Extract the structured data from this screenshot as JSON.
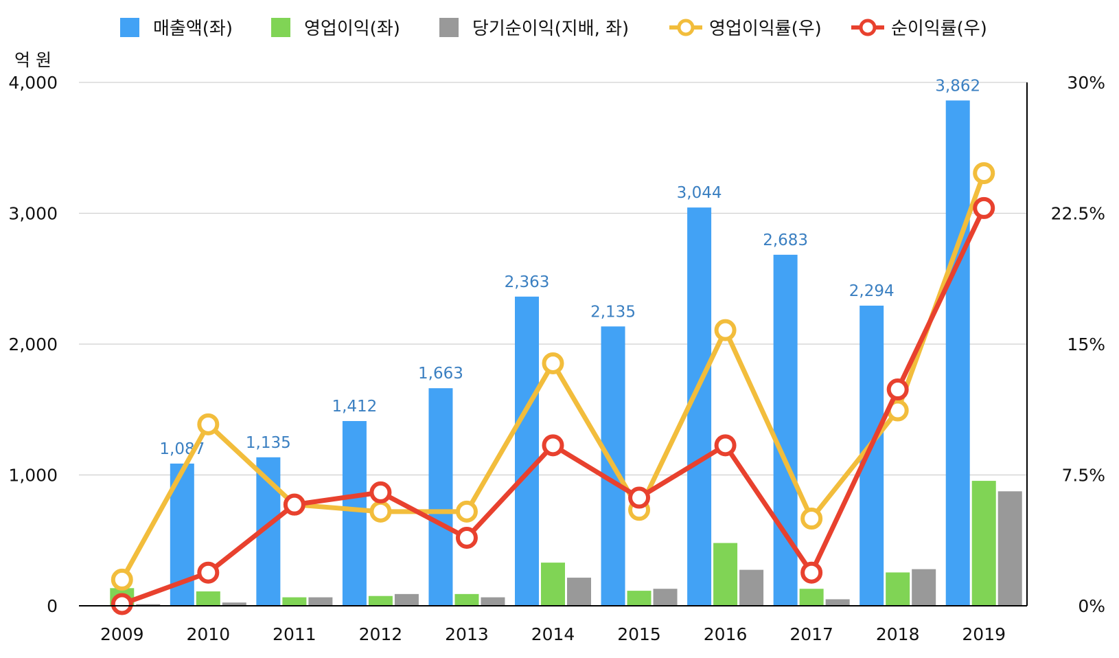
{
  "chart_data": {
    "type": "bar",
    "unit_label": "억 원",
    "categories": [
      "2009",
      "2010",
      "2011",
      "2012",
      "2013",
      "2014",
      "2015",
      "2016",
      "2017",
      "2018",
      "2019"
    ],
    "left_axis": {
      "ylim": [
        0,
        4000
      ],
      "ticks": [
        0,
        1000,
        2000,
        3000,
        4000
      ],
      "tick_labels": [
        "0",
        "1,000",
        "2,000",
        "3,000",
        "4,000"
      ]
    },
    "right_axis": {
      "ylim": [
        0,
        30
      ],
      "ticks": [
        0,
        7.5,
        15,
        22.5,
        30
      ],
      "tick_labels": [
        "0%",
        "7.5%",
        "15%",
        "22.5%",
        "30%"
      ]
    },
    "series": [
      {
        "name": "매출액(좌)",
        "kind": "bar",
        "axis": "left",
        "color": "#42a2f5",
        "values": [
          0,
          1087,
          1135,
          1412,
          1663,
          2363,
          2135,
          3044,
          2683,
          2294,
          3862
        ],
        "labels": [
          "",
          "1,087",
          "1,135",
          "1,412",
          "1,663",
          "2,363",
          "2,135",
          "3,044",
          "2,683",
          "2,294",
          "3,862"
        ]
      },
      {
        "name": "영업이익(좌)",
        "kind": "bar",
        "axis": "left",
        "color": "#80d455",
        "values": [
          135,
          110,
          65,
          75,
          90,
          330,
          115,
          480,
          130,
          255,
          955
        ]
      },
      {
        "name": "당기순이익(지배, 좌)",
        "kind": "bar",
        "axis": "left",
        "color": "#999999",
        "values": [
          12,
          25,
          65,
          90,
          65,
          215,
          130,
          275,
          50,
          280,
          875
        ]
      },
      {
        "name": "영업이익률(우)",
        "kind": "line",
        "axis": "right",
        "color": "#f2bd3c",
        "values": [
          1.5,
          10.4,
          5.8,
          5.4,
          5.4,
          13.9,
          5.5,
          15.8,
          5.0,
          11.2,
          24.8
        ]
      },
      {
        "name": "순이익률(우)",
        "kind": "line",
        "axis": "right",
        "color": "#e8412e",
        "values": [
          0.1,
          1.9,
          5.8,
          6.5,
          3.9,
          9.2,
          6.2,
          9.2,
          1.9,
          12.4,
          22.8
        ]
      }
    ]
  }
}
